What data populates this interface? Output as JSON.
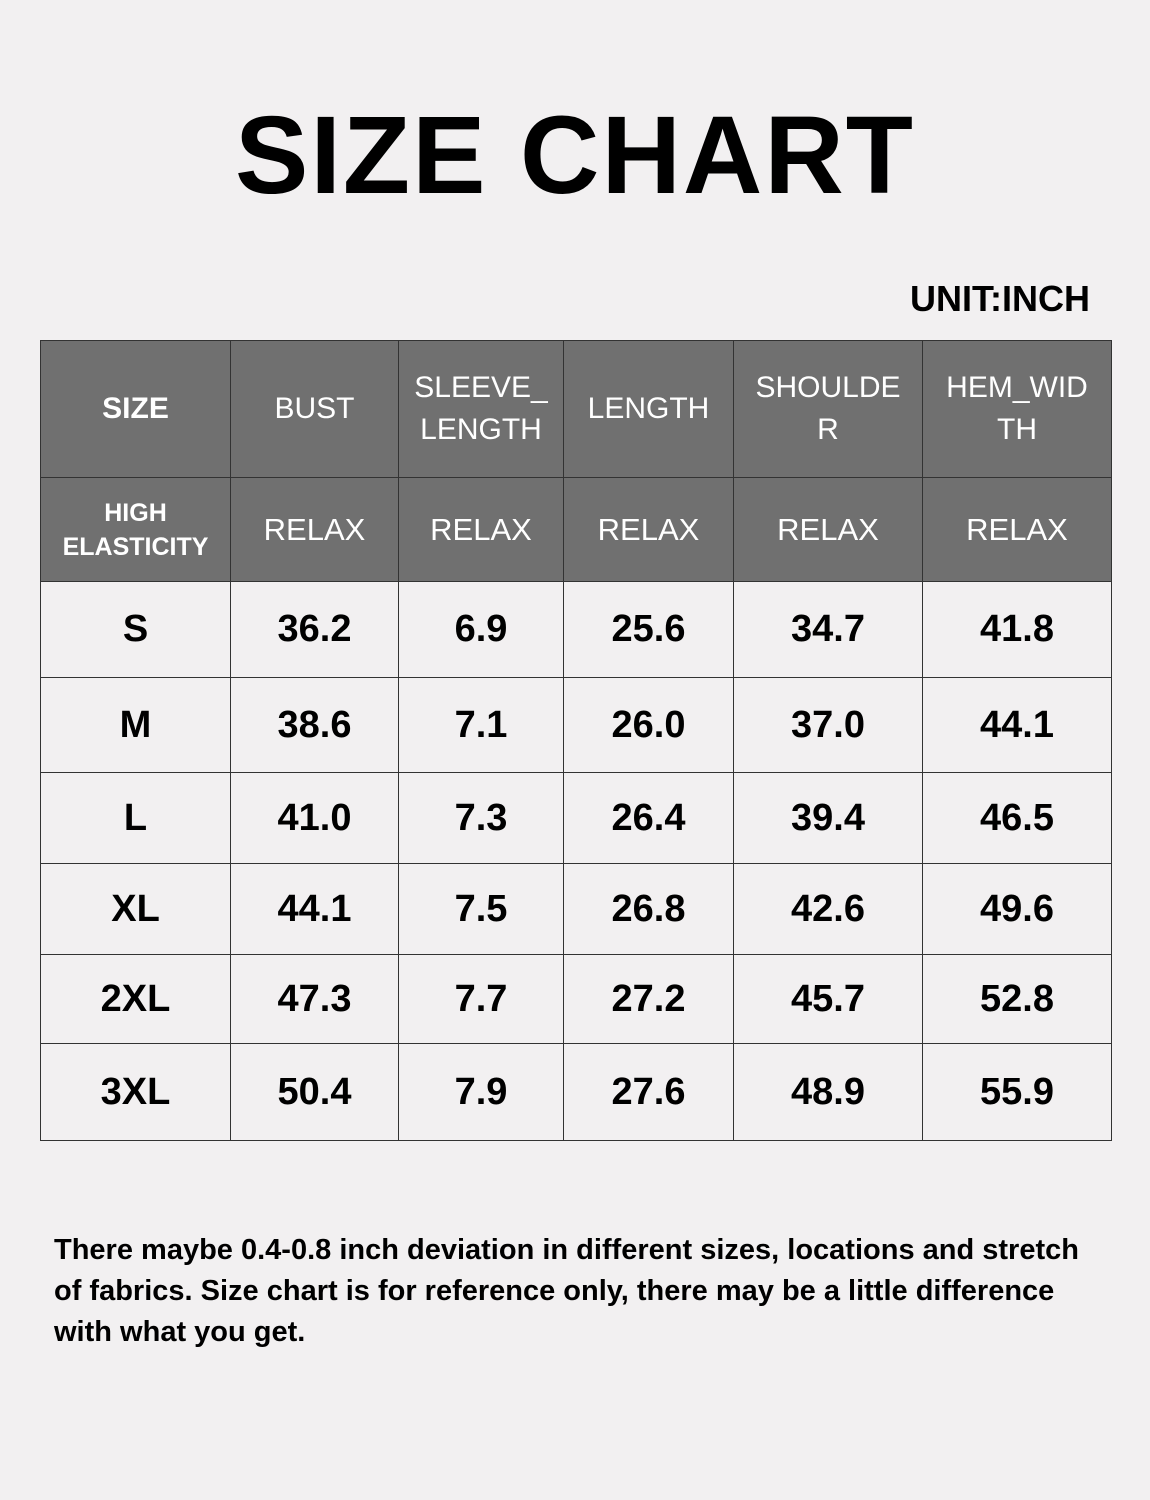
{
  "title": "SIZE CHART",
  "unit": "UNIT:INCH",
  "table": {
    "headers": [
      "SIZE",
      "BUST",
      "SLEEVE_\nLENGTH",
      "LENGTH",
      "SHOULDE\nR",
      "HEM_WID\nTH"
    ],
    "subheaders": [
      "HIGH\nELASTICITY",
      "RELAX",
      "RELAX",
      "RELAX",
      "RELAX",
      "RELAX"
    ],
    "rows": [
      [
        "S",
        "36.2",
        "6.9",
        "25.6",
        "34.7",
        "41.8"
      ],
      [
        "M",
        "38.6",
        "7.1",
        "26.0",
        "37.0",
        "44.1"
      ],
      [
        "L",
        "41.0",
        "7.3",
        "26.4",
        "39.4",
        "46.5"
      ],
      [
        "XL",
        "44.1",
        "7.5",
        "26.8",
        "42.6",
        "49.6"
      ],
      [
        "2XL",
        "47.3",
        "7.7",
        "27.2",
        "45.7",
        "52.8"
      ],
      [
        "3XL",
        "50.4",
        "7.9",
        "27.6",
        "48.9",
        "55.9"
      ]
    ]
  },
  "note": "There maybe 0.4-0.8 inch deviation in different sizes, locations and stretch of fabrics. Size chart is for reference only, there may be a little difference with what you get.",
  "colors": {
    "header_bg": "#707070",
    "page_bg": "#f2f0f1"
  }
}
